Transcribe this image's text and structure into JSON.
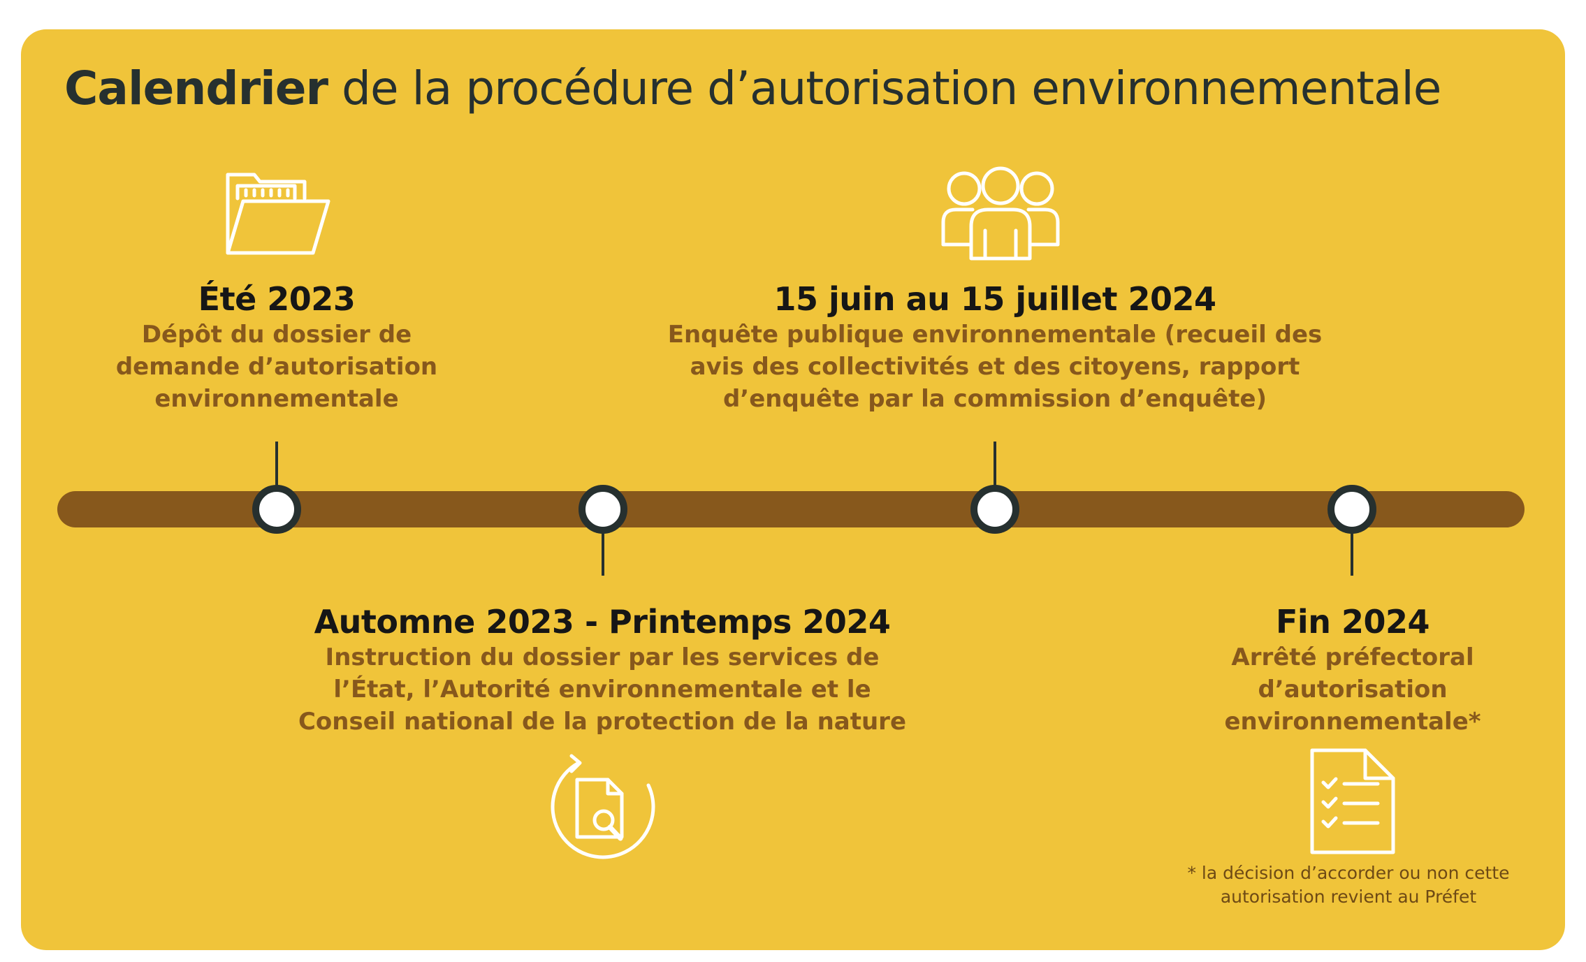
{
  "title": {
    "bold": "Calendrier",
    "rest": " de la procédure d’autorisation environnementale"
  },
  "colors": {
    "background": "#f0c43a",
    "timeline": "#87581c",
    "node_border": "#26302f",
    "date_text": "#161616",
    "description_text": "#87581c",
    "icon_stroke": "#ffffff"
  },
  "events": [
    {
      "date": "Été 2023",
      "description": "Dépôt du dossier de demande d’autorisation environnementale",
      "icon": "folder-icon",
      "position": "above"
    },
    {
      "date": "Automne 2023 - Printemps 2024",
      "description": "Instruction du dossier par les services de l’État, l’Autorité environnementale et le Conseil national de la protection de la nature",
      "icon": "document-search-icon",
      "position": "below"
    },
    {
      "date": "15 juin au 15 juillet 2024",
      "description": "Enquête publique environnementale (recueil des avis des collectivités et des citoyens, rapport d’enquête par la commission d’enquête)",
      "icon": "people-group-icon",
      "position": "above"
    },
    {
      "date": "Fin 2024",
      "description": "Arrêté préfectoral d’autorisation environnementale*",
      "icon": "checklist-document-icon",
      "position": "below"
    }
  ],
  "footnote": "* la décision d’accorder ou non cette autorisation revient au Préfet"
}
